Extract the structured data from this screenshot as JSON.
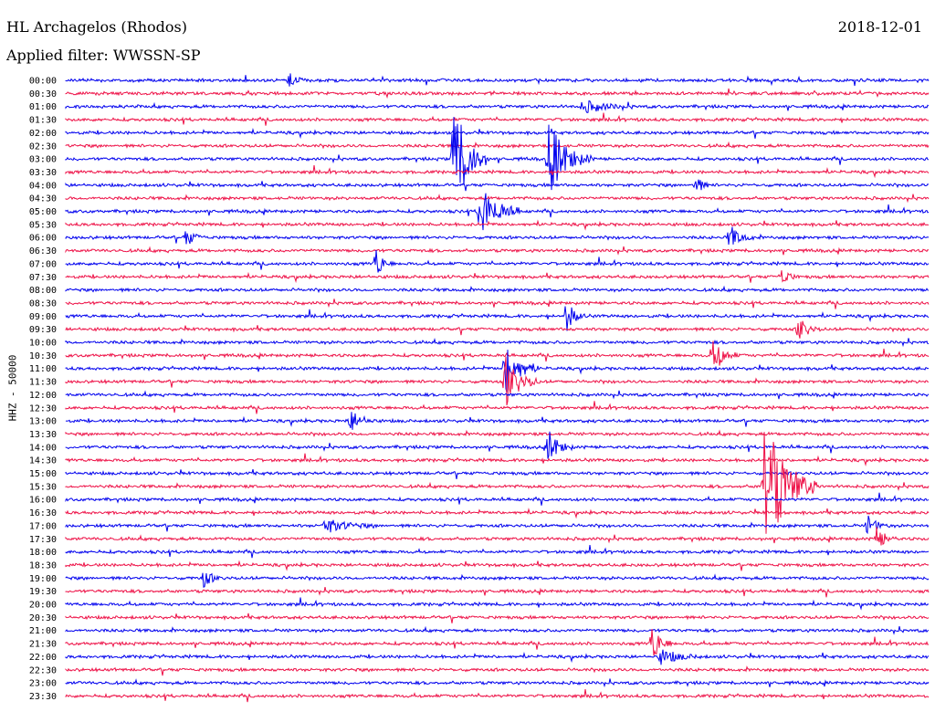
{
  "header": {
    "station": "HL Archagelos (Rhodos)",
    "filter": "Applied filter: WWSSN-SP",
    "date": "2018-12-01"
  },
  "chart_data": {
    "type": "line",
    "ylabel": "HHZ - 50000",
    "times": [
      "00:00",
      "00:30",
      "01:00",
      "01:30",
      "02:00",
      "02:30",
      "03:00",
      "03:30",
      "04:00",
      "04:30",
      "05:00",
      "05:30",
      "06:00",
      "06:30",
      "07:00",
      "07:30",
      "08:00",
      "08:30",
      "09:00",
      "09:30",
      "10:00",
      "10:30",
      "11:00",
      "11:30",
      "12:00",
      "12:30",
      "13:00",
      "13:30",
      "14:00",
      "14:30",
      "15:00",
      "15:30",
      "16:00",
      "16:30",
      "17:00",
      "17:30",
      "18:00",
      "18:30",
      "19:00",
      "19:30",
      "20:00",
      "20:30",
      "21:00",
      "21:30",
      "22:00",
      "22:30",
      "23:00",
      "23:30"
    ],
    "colors": [
      "#0000ee",
      "#ee1147"
    ],
    "events": [
      {
        "row": 0,
        "t": 0.26,
        "amp": 8,
        "dur": 0.01
      },
      {
        "row": 2,
        "t": 0.6,
        "amp": 7,
        "dur": 0.05
      },
      {
        "row": 6,
        "t": 0.45,
        "amp": 70,
        "dur": 0.03
      },
      {
        "row": 6,
        "t": 0.56,
        "amp": 40,
        "dur": 0.04
      },
      {
        "row": 8,
        "t": 0.73,
        "amp": 12,
        "dur": 0.01
      },
      {
        "row": 10,
        "t": 0.48,
        "amp": 30,
        "dur": 0.04
      },
      {
        "row": 12,
        "t": 0.14,
        "amp": 10,
        "dur": 0.015
      },
      {
        "row": 12,
        "t": 0.77,
        "amp": 14,
        "dur": 0.02
      },
      {
        "row": 14,
        "t": 0.36,
        "amp": 18,
        "dur": 0.01
      },
      {
        "row": 15,
        "t": 0.83,
        "amp": 12,
        "dur": 0.01
      },
      {
        "row": 18,
        "t": 0.58,
        "amp": 18,
        "dur": 0.015
      },
      {
        "row": 19,
        "t": 0.85,
        "amp": 16,
        "dur": 0.015
      },
      {
        "row": 21,
        "t": 0.75,
        "amp": 22,
        "dur": 0.02
      },
      {
        "row": 22,
        "t": 0.51,
        "amp": 30,
        "dur": 0.03
      },
      {
        "row": 23,
        "t": 0.51,
        "amp": 28,
        "dur": 0.03
      },
      {
        "row": 26,
        "t": 0.33,
        "amp": 14,
        "dur": 0.02
      },
      {
        "row": 28,
        "t": 0.56,
        "amp": 18,
        "dur": 0.02
      },
      {
        "row": 31,
        "t": 0.81,
        "amp": 80,
        "dur": 0.05
      },
      {
        "row": 34,
        "t": 0.3,
        "amp": 8,
        "dur": 0.05
      },
      {
        "row": 34,
        "t": 0.93,
        "amp": 12,
        "dur": 0.015
      },
      {
        "row": 35,
        "t": 0.94,
        "amp": 14,
        "dur": 0.015
      },
      {
        "row": 38,
        "t": 0.16,
        "amp": 10,
        "dur": 0.015
      },
      {
        "row": 43,
        "t": 0.68,
        "amp": 22,
        "dur": 0.015
      },
      {
        "row": 44,
        "t": 0.69,
        "amp": 8,
        "dur": 0.04
      }
    ]
  }
}
